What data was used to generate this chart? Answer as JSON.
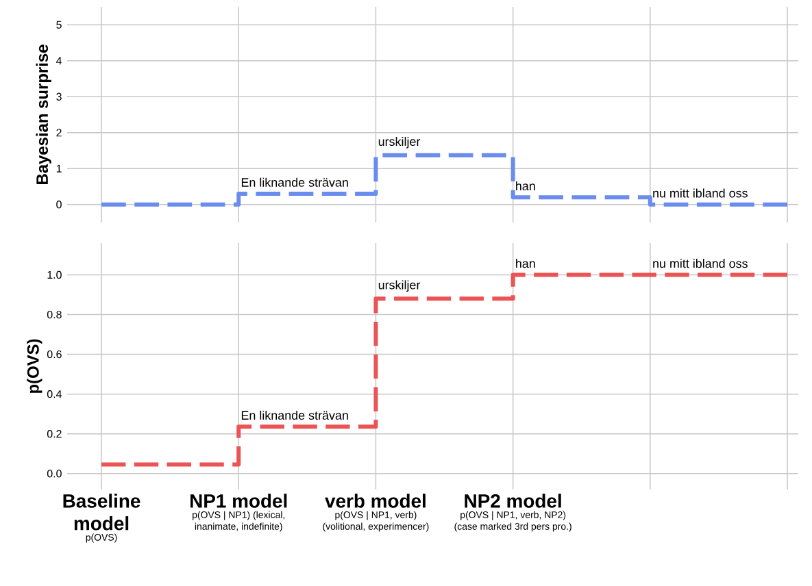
{
  "chart_data": [
    {
      "type": "step",
      "ylabel": "Bayesian surprise",
      "color": "#6a8cec",
      "line_style": "dashed",
      "grid": true,
      "tick_labels": "y",
      "categories": [
        null,
        null,
        null,
        null,
        null,
        null
      ],
      "values": [
        0,
        0.3,
        1.37,
        0.2,
        0,
        0
      ],
      "value_labels": [
        null,
        "En liknande strävan",
        "urskiljer",
        "han",
        "nu mitt ibland oss",
        null
      ],
      "ylim": [
        -0.5,
        5.5
      ],
      "yticks": [
        0,
        1,
        2,
        3,
        4,
        5
      ]
    },
    {
      "type": "step",
      "ylabel": "p(OVS)",
      "color": "#ea5455",
      "line_style": "dashed",
      "grid": true,
      "categories": [
        "Baseline model",
        "NP1 model",
        "verb model",
        "NP2 model",
        null,
        null
      ],
      "values": [
        0.046,
        0.236,
        0.88,
        1.0,
        1.0,
        1.0
      ],
      "value_labels": [
        null,
        "En liknande strävan",
        "urskiljer",
        "han",
        "nu mitt ibland oss",
        null
      ],
      "ylim": [
        -0.08,
        1.16
      ],
      "yticks": [
        {
          "value": 0,
          "label": "0.0"
        },
        {
          "value": 0.2,
          "label": "0.2"
        },
        {
          "value": 0.4,
          "label": "0.4"
        },
        {
          "value": 0.6,
          "label": "0.6"
        },
        {
          "value": 0.8,
          "label": "0.8"
        },
        {
          "value": 1.0,
          "label": "1.0"
        }
      ],
      "annotations": [
        "p(OVS)",
        "p(OVS | NP1) (lexical, inanimate, indefinite)",
        "p(OVS | NP1, verb) (volitional, experimencer)",
        "p(OVS | NP1, verb, NP2) (case marked 3rd pers pro.)"
      ]
    }
  ]
}
